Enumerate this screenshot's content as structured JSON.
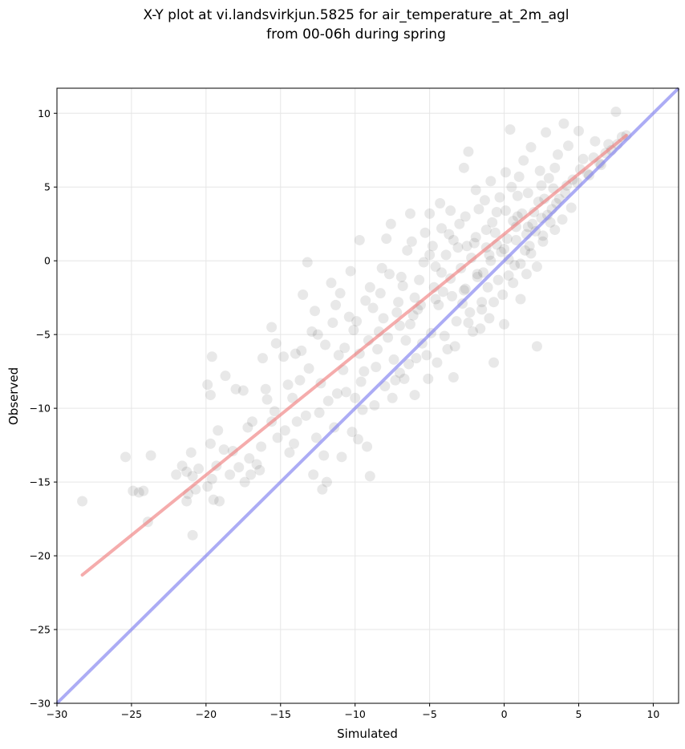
{
  "chart_data": {
    "type": "scatter",
    "title": "X-Y plot at vi.landsvirkjun.5825 for air_temperature_at_2m_agl",
    "subtitle": "from 00-06h during spring",
    "xlabel": "Simulated",
    "ylabel": "Observed",
    "xlim": [
      -30,
      11.7
    ],
    "ylim": [
      -30,
      11.7
    ],
    "xticks": [
      -30,
      -25,
      -20,
      -15,
      -10,
      -5,
      0,
      5,
      10
    ],
    "yticks": [
      -30,
      -25,
      -20,
      -15,
      -10,
      -5,
      0,
      5,
      10
    ],
    "xtick_labels": [
      "−30",
      "−25",
      "−20",
      "−15",
      "−10",
      "−5",
      "0",
      "5",
      "10"
    ],
    "ytick_labels": [
      "−30",
      "−25",
      "−20",
      "−15",
      "−10",
      "−5",
      "0",
      "5",
      "10"
    ],
    "grid": true,
    "point_color": "#000000",
    "fit_line": {
      "color": "#f08080",
      "x": [
        -28.3,
        8.2
      ],
      "y": [
        -21.3,
        8.5
      ]
    },
    "identity_line": {
      "color": "#8080f0",
      "x": [
        -30,
        11.7
      ],
      "y": [
        -30,
        11.7
      ]
    },
    "points": [
      [
        -28.3,
        -16.3
      ],
      [
        -25.4,
        -13.3
      ],
      [
        -24.9,
        -15.6
      ],
      [
        -24.5,
        -15.7
      ],
      [
        -24.2,
        -15.6
      ],
      [
        -23.7,
        -13.2
      ],
      [
        -23.9,
        -17.7
      ],
      [
        -22.0,
        -14.5
      ],
      [
        -21.6,
        -13.9
      ],
      [
        -21.3,
        -14.3
      ],
      [
        -21.0,
        -13.0
      ],
      [
        -20.9,
        -14.6
      ],
      [
        -20.5,
        -14.1
      ],
      [
        -21.2,
        -15.8
      ],
      [
        -21.3,
        -16.3
      ],
      [
        -20.7,
        -15.5
      ],
      [
        -20.9,
        -18.6
      ],
      [
        -19.9,
        -15.3
      ],
      [
        -19.6,
        -14.8
      ],
      [
        -19.5,
        -16.2
      ],
      [
        -19.1,
        -16.3
      ],
      [
        -19.7,
        -12.4
      ],
      [
        -19.2,
        -11.5
      ],
      [
        -19.9,
        -8.4
      ],
      [
        -19.6,
        -6.5
      ],
      [
        -19.7,
        -9.1
      ],
      [
        -19.3,
        -13.9
      ],
      [
        -18.8,
        -12.8
      ],
      [
        -18.7,
        -7.8
      ],
      [
        -18.4,
        -14.5
      ],
      [
        -18.0,
        -8.7
      ],
      [
        -17.8,
        -14.0
      ],
      [
        -17.5,
        -8.8
      ],
      [
        -17.4,
        -15.0
      ],
      [
        -17.1,
        -13.4
      ],
      [
        -17.0,
        -14.5
      ],
      [
        -16.6,
        -13.8
      ],
      [
        -16.4,
        -14.2
      ],
      [
        -16.0,
        -8.7
      ],
      [
        -16.2,
        -6.6
      ],
      [
        -15.6,
        -4.5
      ],
      [
        -15.3,
        -5.6
      ],
      [
        -15.6,
        -10.9
      ],
      [
        -15.2,
        -12.0
      ],
      [
        -14.7,
        -11.5
      ],
      [
        -14.4,
        -13.0
      ],
      [
        -14.2,
        -9.3
      ],
      [
        -14.0,
        -6.3
      ],
      [
        -13.7,
        -8.1
      ],
      [
        -13.5,
        -2.3
      ],
      [
        -13.2,
        -0.1
      ],
      [
        -12.9,
        -4.8
      ],
      [
        -12.8,
        -14.5
      ],
      [
        -12.6,
        -12.0
      ],
      [
        -12.4,
        -10.3
      ],
      [
        -12.0,
        -5.7
      ],
      [
        -12.2,
        -15.5
      ],
      [
        -11.9,
        -15.0
      ],
      [
        -11.6,
        -1.5
      ],
      [
        -11.3,
        -3.0
      ],
      [
        -11.1,
        -6.4
      ],
      [
        -10.9,
        -13.3
      ],
      [
        -10.6,
        -8.9
      ],
      [
        -10.3,
        -0.7
      ],
      [
        -10.1,
        -4.7
      ],
      [
        -9.8,
        -12.1
      ],
      [
        -9.5,
        -10.1
      ],
      [
        -9.7,
        1.4
      ],
      [
        -9.2,
        -12.6
      ],
      [
        -9.0,
        -14.6
      ],
      [
        -8.8,
        -3.2
      ],
      [
        -8.5,
        -6.0
      ],
      [
        -8.2,
        -0.5
      ],
      [
        -7.9,
        1.5
      ],
      [
        -7.6,
        2.5
      ],
      [
        -7.3,
        -8.1
      ],
      [
        -7.0,
        -4.4
      ],
      [
        -6.8,
        -1.7
      ],
      [
        -6.5,
        0.7
      ],
      [
        -6.3,
        3.2
      ],
      [
        -6.0,
        -9.1
      ],
      [
        -5.8,
        -3.3
      ],
      [
        -5.5,
        -5.6
      ],
      [
        -5.3,
        1.9
      ],
      [
        -5.0,
        3.2
      ],
      [
        -4.6,
        -0.4
      ],
      [
        -4.3,
        3.9
      ],
      [
        -4.1,
        -2.1
      ],
      [
        -3.8,
        -6.0
      ],
      [
        -3.6,
        3.4
      ],
      [
        -3.4,
        -7.9
      ],
      [
        -3.1,
        0.9
      ],
      [
        -2.8,
        -2.9
      ],
      [
        -2.7,
        6.3
      ],
      [
        -2.4,
        7.4
      ],
      [
        -2.2,
        0.2
      ],
      [
        -1.9,
        4.8
      ],
      [
        -1.6,
        -4.6
      ],
      [
        -1.4,
        -0.8
      ],
      [
        -1.2,
        2.1
      ],
      [
        -0.9,
        5.4
      ],
      [
        -0.7,
        -6.9
      ],
      [
        -0.5,
        3.3
      ],
      [
        -0.2,
        0.6
      ],
      [
        0.0,
        -4.3
      ],
      [
        0.1,
        6.0
      ],
      [
        0.4,
        8.9
      ],
      [
        0.6,
        2.7
      ],
      [
        0.9,
        4.4
      ],
      [
        1.1,
        -2.6
      ],
      [
        1.3,
        6.8
      ],
      [
        1.5,
        1.8
      ],
      [
        1.8,
        7.7
      ],
      [
        2.0,
        3.3
      ],
      [
        2.2,
        -5.8
      ],
      [
        2.5,
        5.1
      ],
      [
        2.8,
        8.7
      ],
      [
        3.1,
        2.6
      ],
      [
        3.4,
        6.3
      ],
      [
        3.7,
        4.2
      ],
      [
        4.0,
        9.3
      ],
      [
        4.3,
        7.8
      ],
      [
        4.6,
        5.5
      ],
      [
        5.0,
        8.8
      ],
      [
        5.3,
        6.9
      ],
      [
        5.7,
        5.8
      ],
      [
        6.1,
        8.1
      ],
      [
        6.5,
        6.5
      ],
      [
        7.0,
        7.9
      ],
      [
        7.5,
        10.1
      ],
      [
        7.9,
        8.4
      ],
      [
        8.2,
        8.5
      ],
      [
        -14.8,
        -6.5
      ],
      [
        -13.1,
        -7.3
      ],
      [
        -11.8,
        -9.5
      ],
      [
        -10.4,
        -3.8
      ],
      [
        -9.4,
        -7.5
      ],
      [
        -8.7,
        -9.8
      ],
      [
        -7.8,
        -5.2
      ],
      [
        -7.1,
        -2.8
      ],
      [
        -6.4,
        -7.0
      ],
      [
        -5.7,
        -1.3
      ],
      [
        -4.9,
        -4.9
      ],
      [
        -4.4,
        -3.0
      ],
      [
        -3.9,
        0.4
      ],
      [
        -3.2,
        -4.1
      ],
      [
        -2.6,
        -1.9
      ],
      [
        -2.0,
        1.2
      ],
      [
        -1.5,
        -2.8
      ],
      [
        -1.0,
        0.4
      ],
      [
        -0.4,
        -1.3
      ],
      [
        0.2,
        1.5
      ],
      [
        0.7,
        -0.3
      ],
      [
        1.2,
        3.2
      ],
      [
        1.7,
        1.0
      ],
      [
        2.3,
        4.0
      ],
      [
        2.9,
        3.1
      ],
      [
        -16.9,
        -10.9
      ],
      [
        -15.9,
        -9.4
      ],
      [
        -13.9,
        -10.9
      ],
      [
        -12.3,
        -8.3
      ],
      [
        -11.4,
        -11.3
      ],
      [
        -10.0,
        -9.3
      ],
      [
        -9.1,
        -5.4
      ],
      [
        -8.0,
        -8.5
      ],
      [
        -7.4,
        -6.7
      ],
      [
        -6.6,
        -5.4
      ],
      [
        -6.1,
        -3.7
      ],
      [
        -5.2,
        -6.4
      ],
      [
        -4.7,
        -1.8
      ],
      [
        -4.0,
        -5.1
      ],
      [
        -3.5,
        -2.4
      ],
      [
        -2.9,
        -0.5
      ],
      [
        -2.3,
        -3.5
      ],
      [
        -1.8,
        -0.9
      ],
      [
        -1.1,
        -1.8
      ],
      [
        -0.6,
        1.9
      ],
      [
        0.3,
        0.1
      ],
      [
        0.8,
        2.3
      ],
      [
        1.4,
        0.7
      ],
      [
        2.1,
        2.0
      ],
      [
        2.6,
        1.7
      ],
      [
        3.3,
        4.9
      ],
      [
        3.9,
        2.8
      ],
      [
        4.5,
        3.6
      ],
      [
        -12.7,
        -3.4
      ],
      [
        -11.0,
        -2.2
      ],
      [
        -9.9,
        -4.1
      ],
      [
        -9.0,
        -1.8
      ],
      [
        -8.3,
        -2.2
      ],
      [
        -7.7,
        -0.9
      ],
      [
        -6.9,
        -1.1
      ],
      [
        -6.2,
        1.3
      ],
      [
        -5.4,
        -0.1
      ],
      [
        -4.8,
        1.0
      ],
      [
        -4.2,
        -0.8
      ],
      [
        -3.7,
        1.8
      ],
      [
        -3.0,
        2.5
      ],
      [
        -2.5,
        1.0
      ],
      [
        -1.7,
        3.5
      ],
      [
        -1.3,
        4.1
      ],
      [
        -0.8,
        2.6
      ],
      [
        -0.3,
        4.3
      ],
      [
        0.5,
        5.0
      ],
      [
        1.0,
        5.7
      ],
      [
        1.6,
        4.6
      ],
      [
        2.4,
        6.1
      ],
      [
        3.0,
        5.6
      ],
      [
        3.6,
        7.2
      ],
      [
        -14.1,
        -12.4
      ],
      [
        -13.3,
        -10.5
      ],
      [
        -12.1,
        -13.2
      ],
      [
        -11.2,
        -9.0
      ],
      [
        -10.2,
        -11.6
      ],
      [
        -9.6,
        -8.2
      ],
      [
        -8.6,
        -7.2
      ],
      [
        -7.5,
        -9.3
      ],
      [
        -6.7,
        -8.0
      ],
      [
        -5.9,
        -6.6
      ],
      [
        -5.1,
        -8.0
      ],
      [
        -4.5,
        -6.9
      ],
      [
        -3.3,
        -5.8
      ],
      [
        -2.1,
        -4.8
      ],
      [
        -1.0,
        -3.9
      ],
      [
        -0.1,
        -2.3
      ],
      [
        0.6,
        -1.5
      ],
      [
        1.5,
        -0.9
      ],
      [
        2.2,
        -0.4
      ],
      [
        -18.2,
        -12.9
      ],
      [
        -17.2,
        -11.3
      ],
      [
        -16.3,
        -12.6
      ],
      [
        -15.4,
        -10.2
      ],
      [
        -14.5,
        -8.4
      ],
      [
        -13.6,
        -6.1
      ],
      [
        -12.5,
        -5.0
      ],
      [
        -11.5,
        -4.2
      ],
      [
        -10.7,
        -5.9
      ],
      [
        -9.3,
        -2.7
      ],
      [
        -8.1,
        -3.9
      ],
      [
        -7.2,
        -3.5
      ],
      [
        -6.0,
        -2.5
      ],
      [
        -5.0,
        0.4
      ],
      [
        -4.2,
        2.2
      ],
      [
        -3.4,
        1.4
      ],
      [
        -2.6,
        3.0
      ],
      [
        -1.9,
        1.6
      ],
      [
        -1.2,
        0.9
      ],
      [
        -0.5,
        1.1
      ],
      [
        0.1,
        3.4
      ],
      [
        0.9,
        3.0
      ],
      [
        1.9,
        2.5
      ],
      [
        2.7,
        4.2
      ],
      [
        3.5,
        3.9
      ],
      [
        4.2,
        5.1
      ],
      [
        5.1,
        6.2
      ],
      [
        6.0,
        7.0
      ],
      [
        6.8,
        7.3
      ],
      [
        7.6,
        7.9
      ],
      [
        -10.8,
        -7.4
      ],
      [
        -9.7,
        -6.3
      ],
      [
        -8.4,
        -4.8
      ],
      [
        -7.0,
        -7.6
      ],
      [
        -6.3,
        -4.3
      ],
      [
        -5.6,
        -3.0
      ],
      [
        -4.6,
        -2.6
      ],
      [
        -3.6,
        -1.2
      ],
      [
        -2.7,
        -2.0
      ],
      [
        -1.8,
        -1.1
      ],
      [
        -0.9,
        0.0
      ],
      [
        0.0,
        0.8
      ],
      [
        0.8,
        1.4
      ],
      [
        1.6,
        2.3
      ],
      [
        2.5,
        2.9
      ],
      [
        3.2,
        3.5
      ],
      [
        4.1,
        4.6
      ],
      [
        4.9,
        5.3
      ],
      [
        5.6,
        5.9
      ],
      [
        6.4,
        6.6
      ],
      [
        7.2,
        7.5
      ],
      [
        -2.4,
        -4.2
      ],
      [
        -1.5,
        -3.3
      ],
      [
        -0.7,
        -2.8
      ],
      [
        0.3,
        -1.0
      ],
      [
        1.1,
        -0.2
      ],
      [
        1.8,
        0.5
      ],
      [
        2.6,
        1.3
      ],
      [
        3.4,
        2.1
      ]
    ]
  }
}
